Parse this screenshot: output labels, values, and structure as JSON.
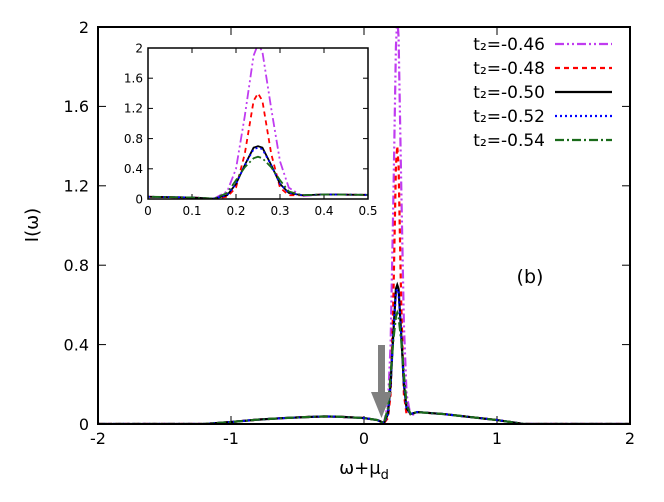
{
  "chart_data": {
    "type": "line",
    "x_label": [
      "ω+μ",
      "d"
    ],
    "y_label": "I(ω)",
    "annotation": "(b)",
    "xlim": [
      -2,
      2
    ],
    "xticks": [
      -2,
      -1,
      0,
      1,
      2
    ],
    "ylim": [
      0,
      2
    ],
    "yticks": [
      0,
      0.4,
      0.8,
      1.2,
      1.6,
      2
    ],
    "legend": "upper right",
    "x": [
      -2,
      -1.5,
      -1.2,
      -1.0,
      -0.8,
      -0.6,
      -0.4,
      -0.3,
      -0.2,
      0,
      0.1,
      0.15,
      0.18,
      0.2,
      0.22,
      0.24,
      0.25,
      0.26,
      0.28,
      0.3,
      0.32,
      0.35,
      0.4,
      0.5,
      0.6,
      0.8,
      1.0,
      1.1,
      1.2,
      1.5,
      2
    ],
    "series": [
      {
        "name": "t₂=-0.46",
        "color": "#c03cf0",
        "dash": "9,3,2,3,2,3",
        "values": [
          0,
          0,
          0,
          0.01,
          0.022,
          0.03,
          0.036,
          0.038,
          0.037,
          0.03,
          0.02,
          0.005,
          0.1,
          0.4,
          1.1,
          1.9,
          2.05,
          1.95,
          1.2,
          0.5,
          0.15,
          0.04,
          0.06,
          0.055,
          0.05,
          0.035,
          0.02,
          0.01,
          0,
          0,
          0
        ]
      },
      {
        "name": "t₂=-0.48",
        "color": "#ff0000",
        "dash": "5,4",
        "values": [
          0,
          0,
          0,
          0.01,
          0.022,
          0.03,
          0.036,
          0.038,
          0.037,
          0.03,
          0.02,
          0.005,
          0.03,
          0.15,
          0.6,
          1.3,
          1.4,
          1.3,
          0.6,
          0.15,
          0.05,
          0.05,
          0.06,
          0.055,
          0.05,
          0.035,
          0.02,
          0.01,
          0,
          0,
          0
        ]
      },
      {
        "name": "t₂=-0.50",
        "color": "#000000",
        "dash": "none",
        "values": [
          0,
          0,
          0,
          0.01,
          0.022,
          0.03,
          0.036,
          0.038,
          0.037,
          0.03,
          0.02,
          0.005,
          0.05,
          0.2,
          0.45,
          0.68,
          0.7,
          0.68,
          0.45,
          0.2,
          0.08,
          0.05,
          0.06,
          0.055,
          0.05,
          0.035,
          0.02,
          0.01,
          0,
          0,
          0
        ]
      },
      {
        "name": "t₂=-0.52",
        "color": "#0000ff",
        "dash": "2,3",
        "values": [
          0,
          0,
          0,
          0.01,
          0.022,
          0.03,
          0.036,
          0.038,
          0.037,
          0.03,
          0.02,
          0.005,
          0.05,
          0.2,
          0.45,
          0.66,
          0.68,
          0.66,
          0.45,
          0.2,
          0.08,
          0.05,
          0.06,
          0.055,
          0.05,
          0.035,
          0.02,
          0.01,
          0,
          0,
          0
        ]
      },
      {
        "name": "t₂=-0.54",
        "color": "#1a6b1a",
        "dash": "9,3,2,3",
        "values": [
          0,
          0,
          0,
          0.01,
          0.022,
          0.03,
          0.036,
          0.038,
          0.037,
          0.03,
          0.02,
          0.005,
          0.08,
          0.25,
          0.42,
          0.54,
          0.56,
          0.54,
          0.42,
          0.25,
          0.1,
          0.05,
          0.06,
          0.055,
          0.05,
          0.035,
          0.02,
          0.01,
          0,
          0,
          0
        ]
      }
    ],
    "inset": {
      "xlim": [
        0,
        0.5
      ],
      "xticks": [
        0,
        0.1,
        0.2,
        0.3,
        0.4,
        0.5
      ],
      "ylim": [
        0,
        2
      ],
      "yticks": [
        0,
        0.4,
        0.8,
        1.2,
        1.6,
        2
      ]
    }
  }
}
